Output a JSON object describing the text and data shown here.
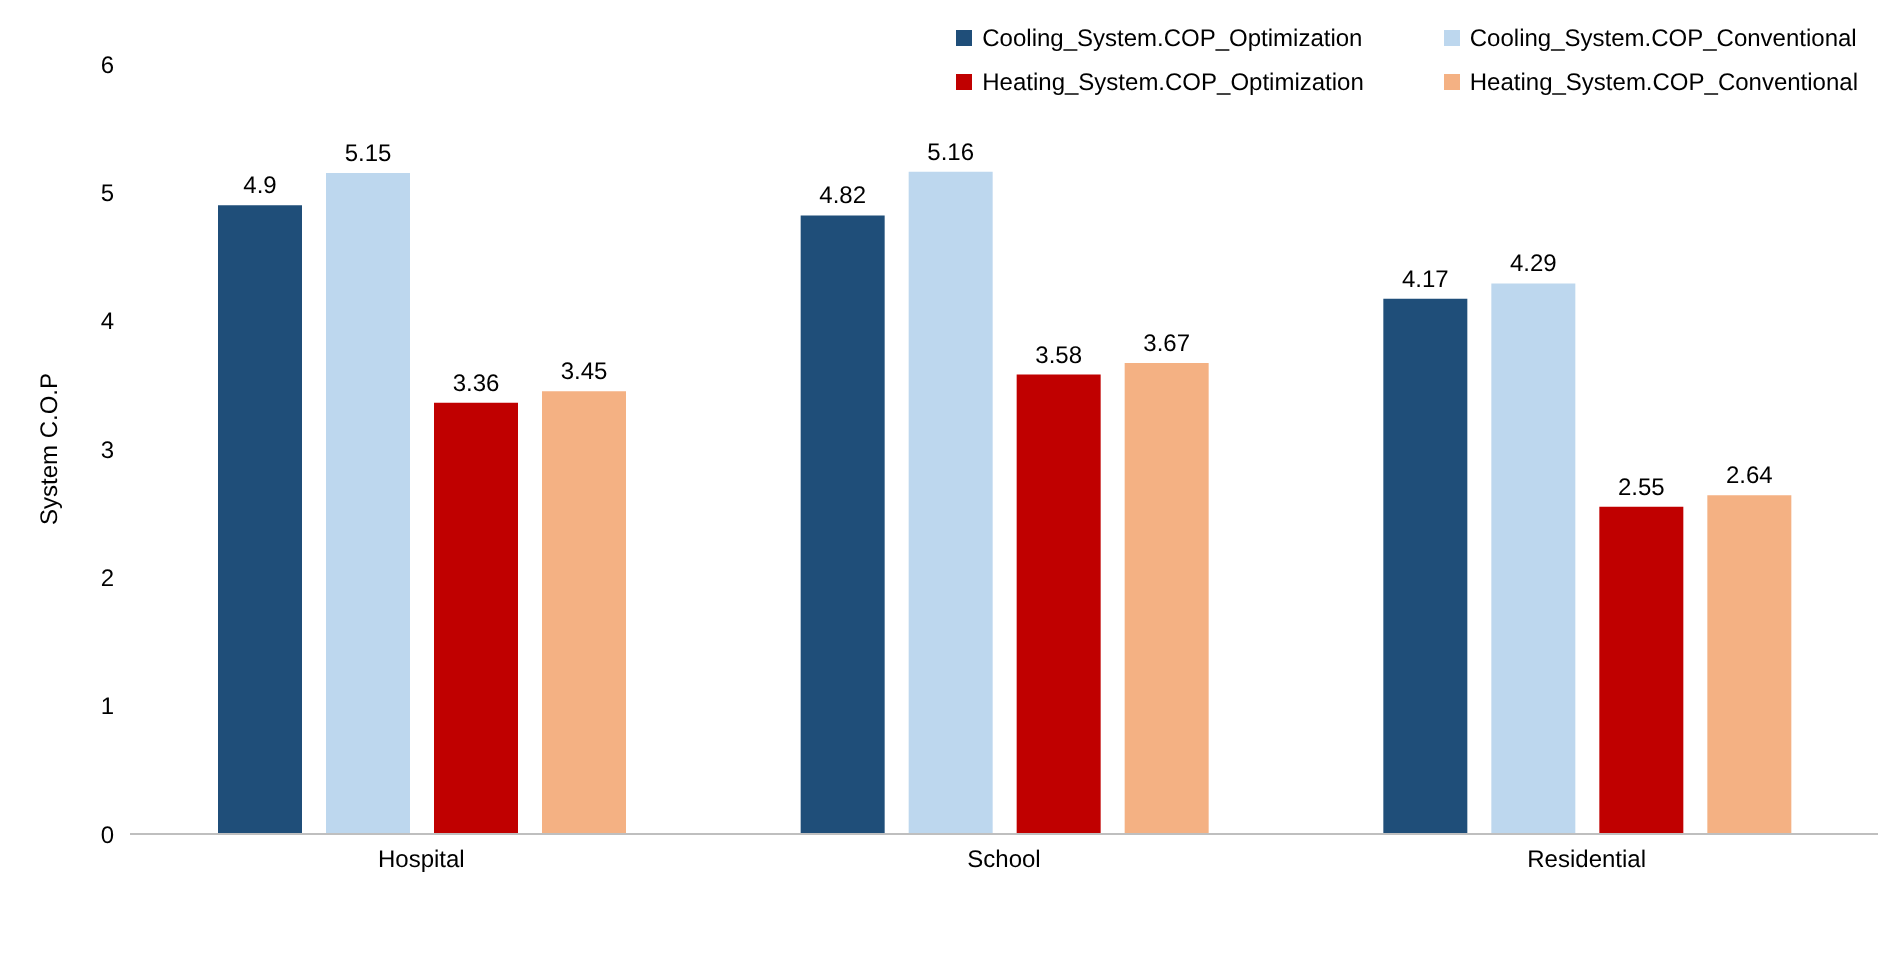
{
  "chart_data": {
    "type": "bar",
    "ylabel": "System C.O.P",
    "categories": [
      "Hospital",
      "School",
      "Residential"
    ],
    "series": [
      {
        "name": "Cooling_System.COP_Optimization",
        "color": "#1f4e79",
        "values": [
          4.9,
          4.82,
          4.17
        ]
      },
      {
        "name": "Cooling_System.COP_Conventional",
        "color": "#bdd7ee",
        "values": [
          5.15,
          5.16,
          4.29
        ]
      },
      {
        "name": "Heating_System.COP_Optimization",
        "color": "#c00000",
        "values": [
          3.36,
          3.58,
          2.55
        ]
      },
      {
        "name": "Heating_System.COP_Conventional",
        "color": "#f4b183",
        "values": [
          3.45,
          3.67,
          2.64
        ]
      }
    ],
    "ylim": [
      0,
      6
    ],
    "yticks": [
      0,
      1,
      2,
      3,
      4,
      5,
      6
    ],
    "data_labels": true,
    "legend": "top right"
  }
}
